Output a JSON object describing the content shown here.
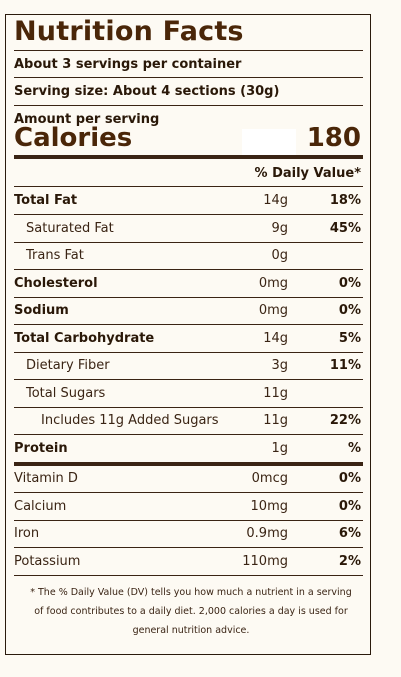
{
  "title": "Nutrition Facts",
  "servings_per_container": "About 3 servings per container",
  "serving_size": "Serving size: About 4 sections (30g)",
  "amount_per_serving": "Amount per serving",
  "calories_label": "Calories",
  "calories_value": "180",
  "daily_value_header": "% Daily Value*",
  "nutrients": [
    {
      "name": "Total Fat",
      "amount": "14g",
      "dv": "18%"
    },
    {
      "name": "Saturated Fat",
      "amount": "9g",
      "dv": "45%"
    },
    {
      "name": "Trans Fat",
      "amount": "0g",
      "dv": ""
    },
    {
      "name": "Cholesterol",
      "amount": "0mg",
      "dv": "0%"
    },
    {
      "name": "Sodium",
      "amount": "0mg",
      "dv": "0%"
    },
    {
      "name": "Total Carbohydrate",
      "amount": "14g",
      "dv": "5%"
    },
    {
      "name": "Dietary Fiber",
      "amount": "3g",
      "dv": "11%"
    },
    {
      "name": "Total Sugars",
      "amount": "11g",
      "dv": ""
    },
    {
      "name": "Includes 11g Added Sugars",
      "amount": "11g",
      "dv": "22%"
    },
    {
      "name": "Protein",
      "amount": "1g",
      "dv": "%"
    }
  ],
  "vitamins": [
    {
      "name": "Vitamin D",
      "amount": "0mcg",
      "dv": "0%"
    },
    {
      "name": "Calcium",
      "amount": "10mg",
      "dv": "0%"
    },
    {
      "name": "Iron",
      "amount": "0.9mg",
      "dv": "6%"
    },
    {
      "name": "Potassium",
      "amount": "110mg",
      "dv": "2%"
    }
  ],
  "footnote": "* The % Daily Value (DV) tells you how much a nutrient in a serving of food contributes to a daily diet. 2,000 calories a day is used for general nutrition advice."
}
